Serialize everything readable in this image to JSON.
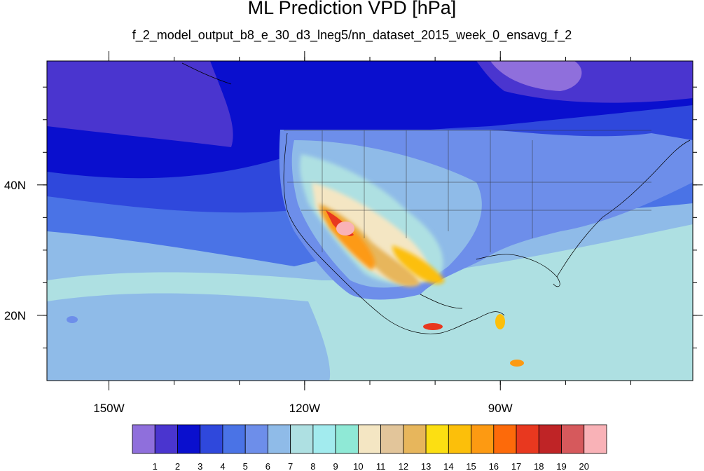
{
  "title": "ML Prediction VPD [hPa]",
  "subtitle": "f_2_model_output_b8_e_30_d3_lneg5/nn_dataset_2015_week_0_ensavg_f_2",
  "axes": {
    "x_ticks": [
      {
        "lon": -150,
        "label": "150W"
      },
      {
        "lon": -120,
        "label": "120W"
      },
      {
        "lon": -90,
        "label": "90W"
      }
    ],
    "y_ticks": [
      {
        "lat": 40,
        "label": "40N"
      },
      {
        "lat": 20,
        "label": "20N"
      }
    ],
    "lon_range": [
      -159.5,
      -60.5
    ],
    "lat_range": [
      10,
      59
    ]
  },
  "colorbar": {
    "colors": [
      "#8f6fdc",
      "#4a35cf",
      "#0a0fce",
      "#2f48dc",
      "#4a73e6",
      "#6d8eea",
      "#8fbbe8",
      "#aee0e2",
      "#a2ebee",
      "#8fe9d6",
      "#f4e6c3",
      "#e2c59a",
      "#e7b65c",
      "#fcdf12",
      "#fcbf0a",
      "#fd9a12",
      "#fd6a0a",
      "#e8381f",
      "#bf2426",
      "#d6595c",
      "#f9b2b7"
    ],
    "labels": [
      "1",
      "2",
      "3",
      "4",
      "5",
      "6",
      "7",
      "8",
      "9",
      "10",
      "11",
      "12",
      "13",
      "14",
      "15",
      "16",
      "17",
      "18",
      "19",
      "20"
    ]
  }
}
